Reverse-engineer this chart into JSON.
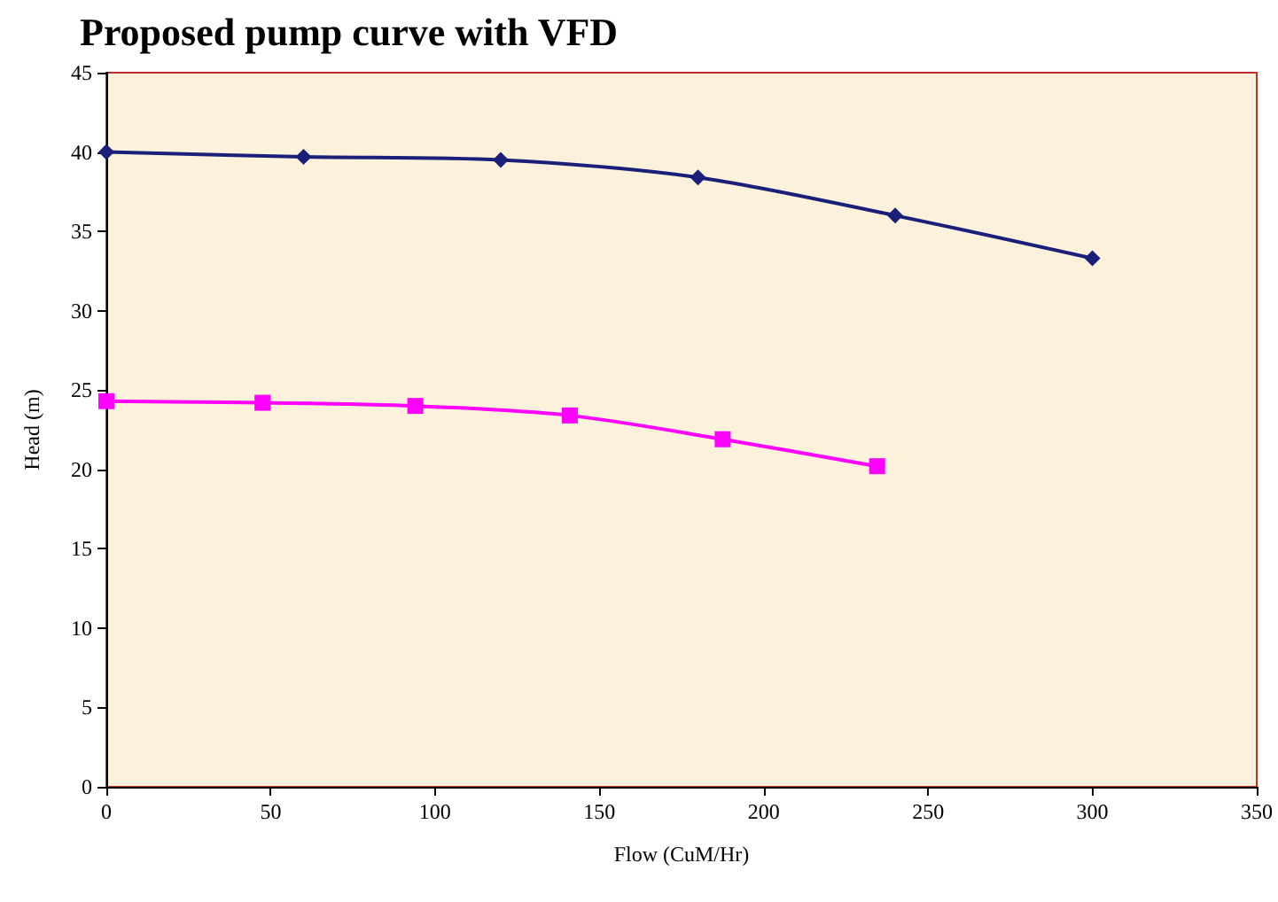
{
  "chart_data": {
    "type": "line",
    "title": "Proposed pump curve with VFD",
    "xlabel": "Flow (CuM/Hr)",
    "ylabel": "Head (m)",
    "xlim": [
      0,
      350
    ],
    "xticks": [
      0,
      50,
      100,
      150,
      200,
      250,
      300,
      350
    ],
    "ylim": [
      0,
      45
    ],
    "yticks": [
      0,
      5,
      10,
      15,
      20,
      25,
      30,
      35,
      40,
      45
    ],
    "grid": false,
    "series": [
      {
        "color": "#1a1f7a",
        "marker": "diamond",
        "x": [
          0,
          60,
          120,
          180,
          240,
          300
        ],
        "values": [
          40,
          39.7,
          39.5,
          38.4,
          36,
          33.3
        ]
      },
      {
        "color": "#ff00ff",
        "marker": "square",
        "x": [
          0,
          47.5,
          94,
          141,
          187.5,
          234.5
        ],
        "values": [
          24.3,
          24.2,
          24,
          23.4,
          21.9,
          20.2
        ]
      }
    ]
  }
}
